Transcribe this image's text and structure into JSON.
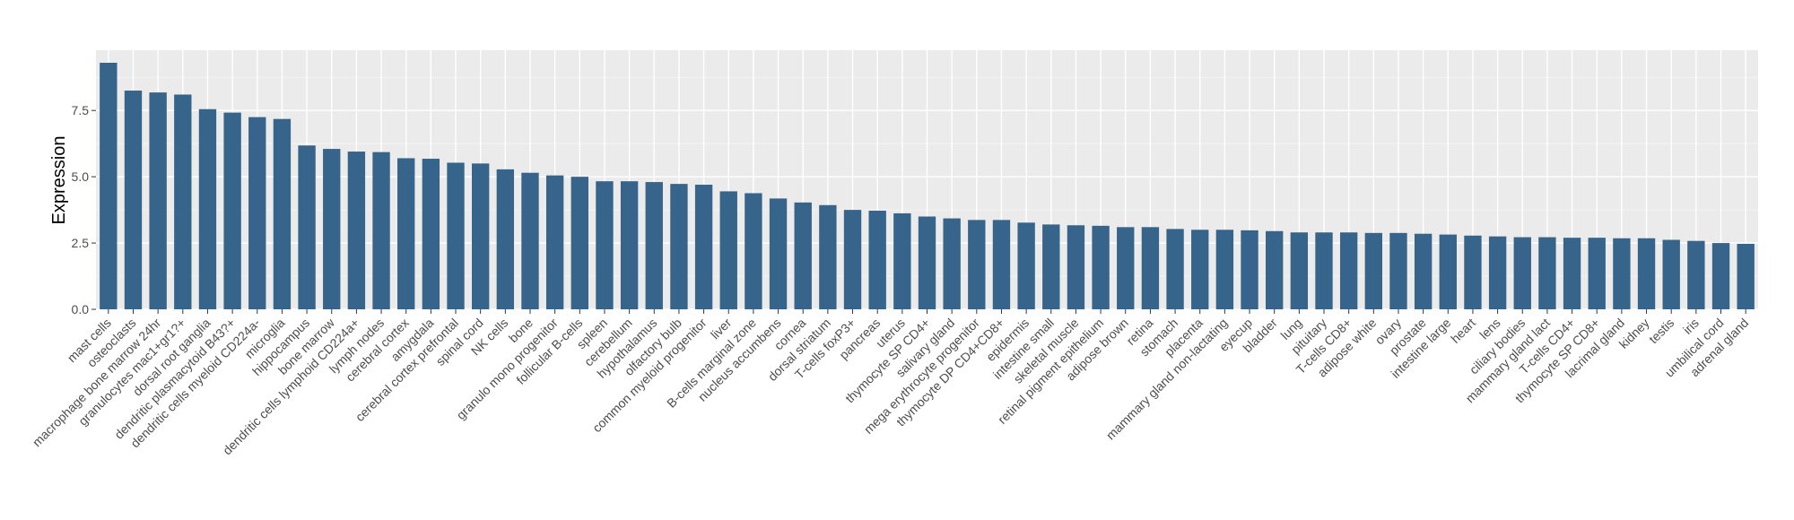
{
  "chart_data": {
    "type": "bar",
    "title": "",
    "xlabel": "",
    "ylabel": "Expression",
    "ylim": [
      0,
      9.3
    ],
    "yticks": [
      "0.0",
      "2.5",
      "5.0",
      "7.5"
    ],
    "grid": true,
    "bar_color": "#36648b",
    "panel_color": "#ebebeb",
    "categories": [
      "mast cells",
      "osteoclasts",
      "macrophage bone marrow 24hr",
      "granulocytes mac1+gr1?+",
      "dorsal root ganglia",
      "dendritic plasmacytoid B43?+",
      "dendritic cells myeloid CD224a-",
      "microglia",
      "hippocampus",
      "bone marrow",
      "dendritic cells lymphoid CD224a+",
      "lymph nodes",
      "cerebral cortex",
      "amygdala",
      "cerebral cortex prefrontal",
      "spinal cord",
      "NK cells",
      "bone",
      "granulo mono progenitor",
      "follicular B-cells",
      "spleen",
      "cerebellum",
      "hypothalamus",
      "olfactory bulb",
      "common myeloid progenitor",
      "liver",
      "B-cells marginal zone",
      "nucleus accumbens",
      "cornea",
      "dorsal striatum",
      "T-cells foxP3+",
      "pancreas",
      "uterus",
      "thymocyte SP CD4+",
      "salivary gland",
      "mega erythrocyte progenitor",
      "thymocyte DP CD4+CD8+",
      "epidermis",
      "intestine small",
      "skeletal muscle",
      "retinal pigment epithelium",
      "adipose brown",
      "retina",
      "stomach",
      "placenta",
      "mammary gland non-lactating",
      "eyecup",
      "bladder",
      "lung",
      "pituitary",
      "T-cells CD8+",
      "adipose white",
      "ovary",
      "prostate",
      "intestine large",
      "heart",
      "lens",
      "ciliary bodies",
      "mammary gland lact",
      "T-cells CD4+",
      "thymocyte SP CD8+",
      "lacrimal gland",
      "kidney",
      "testis",
      "iris",
      "umbilical cord",
      "adrenal gland"
    ],
    "values": [
      9.3,
      8.25,
      8.18,
      8.1,
      7.55,
      7.42,
      7.25,
      7.18,
      6.18,
      6.05,
      5.95,
      5.93,
      5.7,
      5.68,
      5.53,
      5.5,
      5.28,
      5.15,
      5.05,
      5.0,
      4.83,
      4.83,
      4.8,
      4.73,
      4.7,
      4.45,
      4.38,
      4.18,
      4.03,
      3.93,
      3.75,
      3.72,
      3.62,
      3.5,
      3.43,
      3.37,
      3.37,
      3.27,
      3.2,
      3.17,
      3.15,
      3.1,
      3.1,
      3.03,
      3.0,
      3.0,
      2.98,
      2.95,
      2.9,
      2.9,
      2.9,
      2.88,
      2.88,
      2.85,
      2.82,
      2.78,
      2.75,
      2.72,
      2.72,
      2.7,
      2.7,
      2.68,
      2.68,
      2.62,
      2.58,
      2.5,
      2.47
    ]
  }
}
